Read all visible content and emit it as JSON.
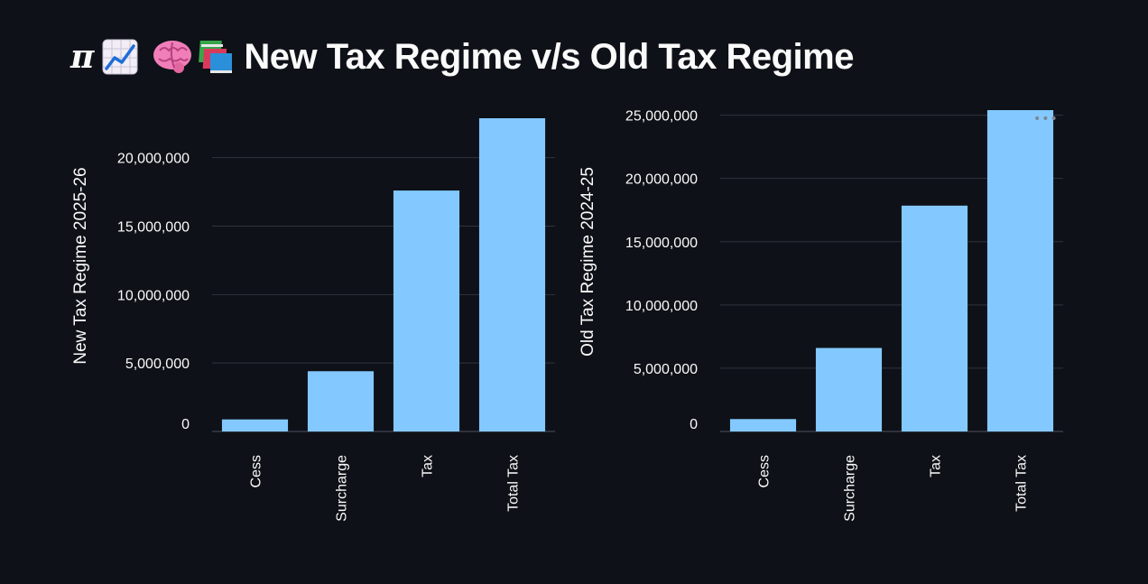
{
  "header": {
    "pi_symbol": "π",
    "title": "New Tax Regime v/s Old Tax Regime",
    "icons": [
      "chart-increasing-icon",
      "brain-icon",
      "books-icon"
    ]
  },
  "colors": {
    "bar": "#83c9ff",
    "grid": "#31333f",
    "background": "#0e1117",
    "text": "#fafafa"
  },
  "chart_data": [
    {
      "type": "bar",
      "categories": [
        "Cess",
        "Surcharge",
        "Tax",
        "Total Tax"
      ],
      "values": [
        880000,
        4400000,
        17600000,
        22880000
      ],
      "ylabel": "New Tax Regime 2025-26",
      "xlabel": "",
      "yticks": [
        0,
        5000000,
        10000000,
        15000000,
        20000000
      ],
      "ytick_labels": [
        "0",
        "5,000,000",
        "10,000,000",
        "15,000,000",
        "20,000,000"
      ],
      "ylim": [
        0,
        22880000
      ],
      "grid": true
    },
    {
      "type": "bar",
      "categories": [
        "Cess",
        "Surcharge",
        "Tax",
        "Total Tax"
      ],
      "values": [
        980000,
        6600000,
        17850000,
        25400000
      ],
      "ylabel": "Old Tax Regime 2024-25",
      "xlabel": "",
      "yticks": [
        0,
        5000000,
        10000000,
        15000000,
        20000000,
        25000000
      ],
      "ytick_labels": [
        "0",
        "5,000,000",
        "10,000,000",
        "15,000,000",
        "20,000,000",
        "25,000,000"
      ],
      "ylim": [
        0,
        25400000
      ],
      "grid": true
    }
  ]
}
